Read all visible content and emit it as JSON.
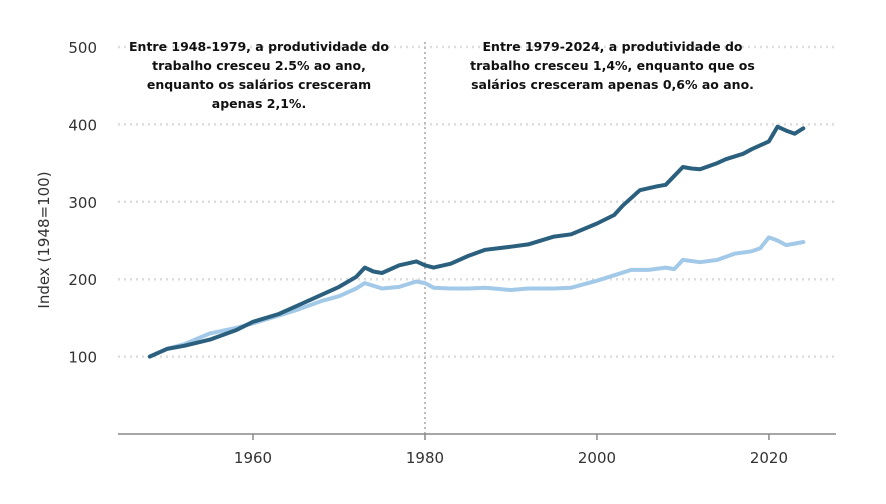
{
  "chart_data": {
    "type": "line",
    "title": "",
    "xlabel": "",
    "ylabel": "Index (1948=100)",
    "xlim": [
      1944.3,
      2027.8
    ],
    "ylim": [
      0,
      500
    ],
    "x_ticks": [
      1960,
      1980,
      2000,
      2020
    ],
    "y_ticks": [
      100,
      200,
      300,
      400,
      500
    ],
    "grid": "horizontal dotted",
    "legend": "none",
    "reference_line_x": 1980,
    "colors": {
      "series_0": "#2b5f7e",
      "series_1": "#a3c9e8",
      "grid": "#dddddd",
      "reference": "#bbbbbb"
    },
    "annotations": [
      "Entre 1948-1979,  a produtividade do trabalho cresceu 2.5% ao ano, enquanto os salários cresceram apenas 2,1%.",
      "Entre 1979-2024, a produtividade do trabalho cresceu 1,4%, enquanto que os salários cresceram apenas 0,6% ao ano."
    ],
    "series": [
      {
        "x": [
          1948,
          1950,
          1952,
          1955,
          1958,
          1960,
          1963,
          1965,
          1968,
          1970,
          1972,
          1973,
          1974,
          1975,
          1977,
          1979,
          1980,
          1981,
          1983,
          1985,
          1987,
          1990,
          1992,
          1995,
          1997,
          2000,
          2002,
          2003,
          2005,
          2007,
          2008,
          2010,
          2011,
          2012,
          2014,
          2015,
          2017,
          2018,
          2020,
          2021,
          2022,
          2023,
          2024
        ],
        "values": [
          100,
          110,
          114,
          122,
          134,
          145,
          155,
          165,
          180,
          190,
          203,
          215,
          210,
          208,
          218,
          223,
          218,
          215,
          220,
          230,
          238,
          242,
          245,
          255,
          258,
          272,
          283,
          295,
          315,
          320,
          322,
          345,
          343,
          342,
          350,
          355,
          362,
          368,
          378,
          397,
          392,
          388,
          395
        ]
      },
      {
        "x": [
          1948,
          1950,
          1952,
          1955,
          1958,
          1960,
          1963,
          1965,
          1968,
          1970,
          1972,
          1973,
          1975,
          1977,
          1979,
          1980,
          1981,
          1983,
          1985,
          1987,
          1990,
          1992,
          1995,
          1997,
          2000,
          2002,
          2004,
          2006,
          2008,
          2009,
          2010,
          2012,
          2014,
          2016,
          2018,
          2019,
          2020,
          2021,
          2022,
          2023,
          2024
        ],
        "values": [
          100,
          110,
          116,
          130,
          137,
          143,
          153,
          160,
          172,
          178,
          188,
          195,
          188,
          190,
          197,
          195,
          189,
          188,
          188,
          189,
          186,
          188,
          188,
          189,
          198,
          205,
          212,
          212,
          215,
          213,
          225,
          222,
          225,
          233,
          236,
          240,
          254,
          250,
          244,
          246,
          248
        ]
      }
    ]
  }
}
